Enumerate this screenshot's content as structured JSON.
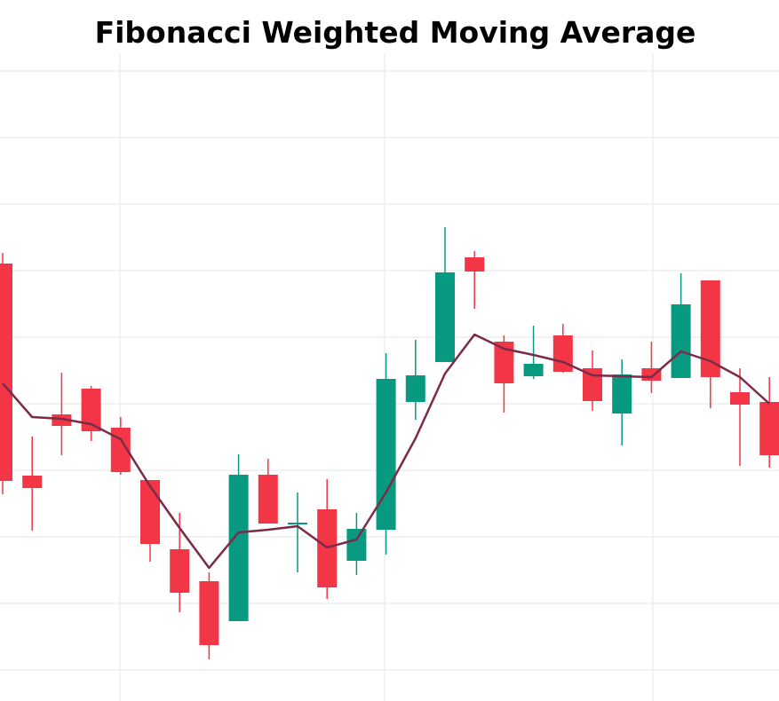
{
  "chart_data": {
    "type": "candlestick",
    "title": "Fibonacci Weighted Moving Average",
    "open": [
      49.3,
      25.4,
      32.3,
      35.2,
      30.8,
      24.9,
      17.1,
      13.5,
      9,
      25.5,
      19.9,
      21.6,
      15.8,
      19.3,
      33.7,
      38.2,
      50,
      40.5,
      36.6,
      41.2,
      37.5,
      32.4,
      37.5,
      36.4,
      47.4,
      34.8,
      33.7
    ],
    "high": [
      50.5,
      29.8,
      37,
      35.5,
      32,
      24.9,
      21.2,
      14.5,
      27.8,
      27.3,
      23.5,
      25,
      21.2,
      39.2,
      40.7,
      53.4,
      50.7,
      41.2,
      42.3,
      42.5,
      39.5,
      38.5,
      40.5,
      48.2,
      47.4,
      37.5,
      36.5
    ],
    "low": [
      23.3,
      19.2,
      27.7,
      29.3,
      25.5,
      15.7,
      10,
      4.7,
      9,
      20,
      14.5,
      11.5,
      14.2,
      16.5,
      31.7,
      38.2,
      44.2,
      32.5,
      36.3,
      37,
      32.7,
      28.8,
      34.7,
      36.4,
      33,
      26.5,
      26.3
    ],
    "close": [
      24.8,
      24,
      31,
      30.4,
      25.8,
      17.7,
      12.2,
      6.3,
      25.5,
      20,
      20.1,
      12.8,
      19.4,
      36.3,
      36.7,
      48.3,
      48.4,
      35.8,
      38,
      37.1,
      33.8,
      36.8,
      36.1,
      44.7,
      36.5,
      33.4,
      27.7
    ],
    "fwma": [
      35.8,
      32,
      31.8,
      31.2,
      29.5,
      24.2,
      19.5,
      15,
      19,
      19.3,
      19.7,
      17.3,
      18.2,
      23.5,
      29.6,
      36.9,
      41.3,
      39.7,
      39,
      38.2,
      36.7,
      36.6,
      36.5,
      39.4,
      38.3,
      36.5,
      33.5
    ],
    "up_color": "#089981",
    "down_color": "#f23645",
    "line_color": "#7b2a4a",
    "ylim": [
      0,
      73
    ],
    "yticks": [
      3.5,
      11,
      18.5,
      26,
      33.5,
      41,
      48.5,
      56,
      63.5,
      71
    ],
    "grid": true
  }
}
